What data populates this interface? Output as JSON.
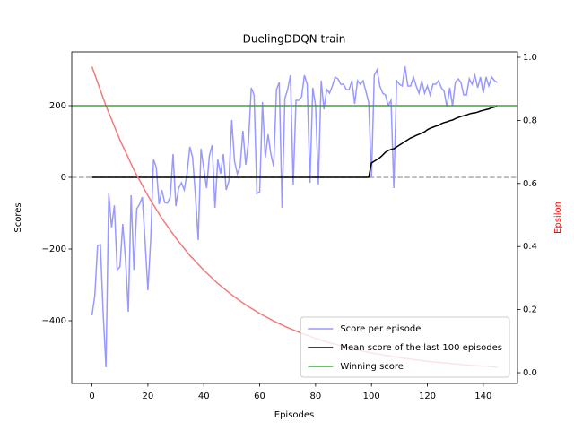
{
  "chart_data": {
    "type": "line",
    "title": "DuelingDDQN train",
    "x_label": "Episodes",
    "y_label": "Scores",
    "y2_label": "Epsilon",
    "y2_label_color": "#ff0000",
    "x": [
      0,
      1,
      2,
      3,
      4,
      5,
      6,
      7,
      8,
      9,
      10,
      11,
      12,
      13,
      14,
      15,
      16,
      17,
      18,
      19,
      20,
      21,
      22,
      23,
      24,
      25,
      26,
      27,
      28,
      29,
      30,
      31,
      32,
      33,
      34,
      35,
      36,
      37,
      38,
      39,
      40,
      41,
      42,
      43,
      44,
      45,
      46,
      47,
      48,
      49,
      50,
      51,
      52,
      53,
      54,
      55,
      56,
      57,
      58,
      59,
      60,
      61,
      62,
      63,
      64,
      65,
      66,
      67,
      68,
      69,
      70,
      71,
      72,
      73,
      74,
      75,
      76,
      77,
      78,
      79,
      80,
      81,
      82,
      83,
      84,
      85,
      86,
      87,
      88,
      89,
      90,
      91,
      92,
      93,
      94,
      95,
      96,
      97,
      98,
      99,
      100,
      101,
      102,
      103,
      104,
      105,
      106,
      107,
      108,
      109,
      110,
      111,
      112,
      113,
      114,
      115,
      116,
      117,
      118,
      119,
      120,
      121,
      122,
      123,
      124,
      125,
      126,
      127,
      128,
      129,
      130,
      131,
      132,
      133,
      134,
      135,
      136,
      137,
      138,
      139,
      140,
      141,
      142,
      143,
      144,
      145
    ],
    "series": [
      {
        "name": "Score per episode",
        "color": "#9999ff",
        "values": [
          -385,
          -330,
          -190,
          -188,
          -380,
          -530,
          -45,
          -140,
          -78,
          -258,
          -250,
          -130,
          -230,
          -375,
          -50,
          -258,
          -88,
          -75,
          -55,
          -180,
          -315,
          -175,
          50,
          28,
          -75,
          -35,
          -70,
          -72,
          -55,
          65,
          -80,
          -30,
          -15,
          -35,
          10,
          85,
          55,
          -50,
          -175,
          80,
          25,
          -30,
          60,
          90,
          -85,
          50,
          10,
          65,
          -35,
          -10,
          160,
          45,
          10,
          30,
          130,
          35,
          100,
          250,
          230,
          -45,
          -40,
          210,
          55,
          120,
          65,
          30,
          245,
          265,
          -85,
          220,
          245,
          285,
          -20,
          215,
          215,
          225,
          285,
          260,
          -15,
          250,
          200,
          -20,
          270,
          190,
          245,
          235,
          255,
          280,
          275,
          260,
          260,
          245,
          245,
          270,
          205,
          270,
          260,
          270,
          240,
          210,
          0,
          285,
          300,
          255,
          235,
          230,
          200,
          215,
          -30,
          270,
          260,
          255,
          310,
          255,
          255,
          280,
          255,
          235,
          270,
          235,
          255,
          230,
          260,
          260,
          270,
          250,
          240,
          195,
          250,
          200,
          265,
          275,
          265,
          230,
          230,
          275,
          260,
          285,
          250,
          280,
          235,
          280,
          255,
          280,
          270,
          265
        ]
      },
      {
        "name": "Mean score of the last 100 episodes",
        "color": "#000000",
        "values": [
          0,
          0,
          0,
          0,
          0,
          0,
          0,
          0,
          0,
          0,
          0,
          0,
          0,
          0,
          0,
          0,
          0,
          0,
          0,
          0,
          0,
          0,
          0,
          0,
          0,
          0,
          0,
          0,
          0,
          0,
          0,
          0,
          0,
          0,
          0,
          0,
          0,
          0,
          0,
          0,
          0,
          0,
          0,
          0,
          0,
          0,
          0,
          0,
          0,
          0,
          0,
          0,
          0,
          0,
          0,
          0,
          0,
          0,
          0,
          0,
          0,
          0,
          0,
          0,
          0,
          0,
          0,
          0,
          0,
          0,
          0,
          0,
          0,
          0,
          0,
          0,
          0,
          0,
          0,
          0,
          0,
          0,
          0,
          0,
          0,
          0,
          0,
          0,
          0,
          0,
          0,
          0,
          0,
          0,
          0,
          0,
          0,
          0,
          0,
          0,
          40,
          45,
          50,
          55,
          62,
          70,
          75,
          78,
          80,
          85,
          90,
          95,
          100,
          105,
          110,
          113,
          117,
          120,
          124,
          127,
          133,
          137,
          140,
          143,
          145,
          150,
          153,
          155,
          158,
          160,
          164,
          167,
          170,
          172,
          174,
          177,
          179,
          180,
          182,
          185,
          187,
          189,
          191,
          194,
          196,
          198
        ]
      },
      {
        "color": "#f47a7a",
        "axis": "y2",
        "x": [
          0,
          5,
          10,
          15,
          20,
          25,
          30,
          35,
          40,
          45,
          50,
          55,
          60,
          65,
          70,
          75,
          80,
          85,
          90,
          95,
          100,
          105,
          110,
          115,
          120,
          125,
          130,
          135,
          140,
          145
        ],
        "values": [
          0.97,
          0.846,
          0.738,
          0.643,
          0.561,
          0.489,
          0.427,
          0.372,
          0.325,
          0.283,
          0.247,
          0.215,
          0.188,
          0.164,
          0.143,
          0.125,
          0.109,
          0.095,
          0.083,
          0.072,
          0.063,
          0.055,
          0.048,
          0.042,
          0.036,
          0.032,
          0.028,
          0.024,
          0.021,
          0.018
        ]
      }
    ],
    "hlines": [
      {
        "name": "Winning score",
        "value": 200,
        "color": "#3aa63a"
      },
      {
        "value": 0,
        "color": "#aaaaaa",
        "dashed": true
      }
    ],
    "xlim": [
      -7.25,
      152.25
    ],
    "xticks": [
      0,
      20,
      40,
      60,
      80,
      100,
      120,
      140
    ],
    "ylim": [
      -575,
      350
    ],
    "yticks": [
      {
        "value": -400,
        "label": "−400"
      },
      {
        "value": -200,
        "label": "−200"
      },
      0,
      200
    ],
    "y2lim": [
      -0.034,
      1.017
    ],
    "y2ticks": [
      {
        "value": 0,
        "label": "0.0"
      },
      0.2,
      0.4,
      0.6,
      0.8,
      {
        "value": 1,
        "label": "1.0"
      }
    ],
    "legend": "lower right"
  }
}
